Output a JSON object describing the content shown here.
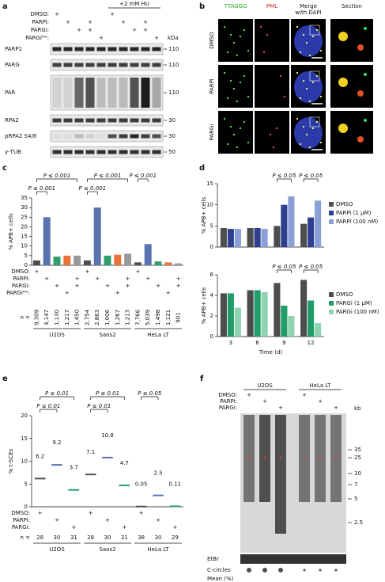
{
  "figure": {
    "a": {
      "label": "a",
      "hu": "+2 mM HU",
      "kda": "kDa",
      "treatments": [
        {
          "name": "DMSO:",
          "marks": [
            "+",
            null,
            null,
            null,
            null,
            "+",
            null,
            null,
            null,
            null
          ]
        },
        {
          "name": "PARPi:",
          "marks": [
            null,
            "+",
            null,
            "+",
            null,
            null,
            "+",
            null,
            "+",
            null
          ]
        },
        {
          "name": "PARGi:",
          "marks": [
            null,
            null,
            "+",
            "+",
            null,
            null,
            null,
            "+",
            "+",
            null
          ]
        },
        {
          "name": "PARGiᴹᵉ:",
          "marks": [
            null,
            null,
            null,
            null,
            "+",
            null,
            null,
            null,
            null,
            "+"
          ]
        }
      ],
      "blots": [
        {
          "name": "PARP1",
          "kda": 110
        },
        {
          "name": "PARG",
          "kda": 110
        },
        {
          "name": "PAR",
          "kda": 110
        },
        {
          "name": "RPA2",
          "kda": 30
        },
        {
          "name": "pRPA2 S4/8",
          "kda": 30
        },
        {
          "name": "γ-TUB",
          "kda": 50
        }
      ]
    },
    "b": {
      "label": "b",
      "columns": [
        [
          "TTAGGG"
        ],
        [
          "PML"
        ],
        [
          "Merge",
          "with DAPI"
        ],
        [
          "Section"
        ]
      ],
      "rows": [
        "DMSO",
        "PARPi",
        "PARGi"
      ]
    },
    "f": {
      "label": "f",
      "lines": [
        "U2OS",
        "HeLa LT"
      ],
      "treatments": [
        {
          "name": "DMSO:",
          "marks": [
            "+",
            null,
            null,
            "+",
            null,
            null
          ]
        },
        {
          "name": "PARPi:",
          "marks": [
            null,
            "+",
            null,
            null,
            "+",
            null
          ]
        },
        {
          "name": "PARGi:",
          "marks": [
            null,
            null,
            "+",
            null,
            null,
            "+"
          ]
        }
      ],
      "kda": "kb",
      "markers": [
        35,
        25,
        10,
        7,
        5,
        2.5
      ],
      "etbr": "EtBr",
      "ccircles": "C-circles",
      "mean": "Mean (%)"
    }
  },
  "chart_data": [
    {
      "type": "bar",
      "panel": "c",
      "y_label": "% APB+ cells",
      "ylim": [
        0,
        35
      ],
      "yticks": [
        0,
        5,
        10,
        15,
        20,
        25,
        30,
        35
      ],
      "categories": [
        null,
        null,
        null,
        null,
        null,
        null,
        null,
        null,
        null,
        null,
        null,
        null,
        null,
        null,
        null
      ],
      "values": [
        2.5,
        25,
        4.5,
        5,
        5,
        2.5,
        30,
        5,
        5.5,
        6,
        1.5,
        11,
        2,
        1.5,
        1
      ],
      "colors": [
        "#4d4d4d",
        "#5873b0",
        "#2e9e6a",
        "#e8743b",
        "#999999",
        "#4d4d4d",
        "#5873b0",
        "#2e9e6a",
        "#e8743b",
        "#999999",
        "#4d4d4d",
        "#5873b0",
        "#2e9e6a",
        "#e8743b",
        "#999999"
      ],
      "annotations": [
        "P ≤ 0.001",
        "P ≤ 0.001",
        "P ≤ 0.001",
        "P ≤ 0.001",
        "P ≤ 0.001"
      ],
      "treatments": [
        {
          "name": "DMSO:",
          "marks": [
            "+",
            null,
            null,
            null,
            null,
            "+",
            null,
            null,
            null,
            null,
            "+",
            null,
            null,
            null,
            null
          ]
        },
        {
          "name": "PARPi:",
          "marks": [
            null,
            "+",
            null,
            null,
            "+",
            null,
            "+",
            null,
            null,
            "+",
            null,
            "+",
            null,
            null,
            "+"
          ]
        },
        {
          "name": "PARGi:",
          "marks": [
            null,
            null,
            "+",
            null,
            "+",
            null,
            null,
            "+",
            null,
            "+",
            null,
            null,
            "+",
            null,
            "+"
          ]
        },
        {
          "name": "PARGiᴹᵉ:",
          "marks": [
            null,
            null,
            null,
            "+",
            null,
            null,
            null,
            null,
            "+",
            null,
            null,
            null,
            null,
            "+",
            null
          ]
        }
      ],
      "n_label": "n =",
      "n": [
        "9,309",
        "4,147",
        "1,130",
        "1,217",
        "1,450",
        "2,754",
        "2,863",
        "1,006",
        "1,267",
        "1,213",
        "7,766",
        "5,039",
        "1,498",
        "1,121",
        "901"
      ],
      "groups": [
        "U2OS",
        "Saos2",
        "HeLa LT"
      ]
    },
    {
      "type": "grouped_bar",
      "panel": "d",
      "y_label": "% APB+ cells",
      "ylim": [
        0,
        15
      ],
      "yticks": [
        0,
        5,
        10,
        15
      ],
      "categories": [
        null,
        null,
        null,
        null
      ],
      "series": [
        {
          "name": "DMSO",
          "color": "#4d4d4d",
          "values": [
            4.5,
            4.5,
            5,
            5.5
          ]
        },
        {
          "name": "PARPi (1 μM)",
          "color": "#2e3f8f",
          "values": [
            4.3,
            4.5,
            10,
            7
          ]
        },
        {
          "name": "PARPi (100 nM)",
          "color": "#8a9fd6",
          "values": [
            4.3,
            4.3,
            12,
            11
          ]
        }
      ],
      "annotations": [
        "P ≤ 0.05",
        "P ≤ 0.05"
      ]
    },
    {
      "type": "grouped_bar",
      "y_label": "% APB+ cells",
      "x_label": "Time (d)",
      "ylim": [
        0,
        6
      ],
      "yticks": [
        0,
        2,
        4,
        6
      ],
      "categories": [
        "3",
        "6",
        "9",
        "12"
      ],
      "series": [
        {
          "name": "DMSO",
          "color": "#4d4d4d",
          "values": [
            4.2,
            4.5,
            5.2,
            5.5
          ]
        },
        {
          "name": "PARGi (1 μM)",
          "color": "#1f9e6a",
          "values": [
            4.2,
            4.5,
            3,
            3.5
          ]
        },
        {
          "name": "PARGi (100 nM)",
          "color": "#8fd3b0",
          "values": [
            2.8,
            4.3,
            2,
            1.3
          ]
        }
      ],
      "annotations": [
        "P ≤ 0.05",
        "P ≤ 0.05"
      ]
    },
    {
      "type": "dot",
      "panel": "e",
      "y_label": "% t-SCEs",
      "ylim": [
        0,
        20
      ],
      "yticks": [
        0,
        5,
        10,
        15,
        20
      ],
      "categories": [
        null,
        null,
        null,
        null,
        null,
        null,
        null,
        null,
        null
      ],
      "values": [
        6.2,
        9.2,
        3.7,
        7.1,
        10.8,
        4.7,
        0.05,
        2.5,
        0.11
      ],
      "colors": [
        "#4d4d4d",
        "#5873b0",
        "#2e9e6a",
        "#4d4d4d",
        "#5873b0",
        "#2e9e6a",
        "#4d4d4d",
        "#5873b0",
        "#2e9e6a"
      ],
      "annotations": [
        "P ≤ 0.01",
        "P ≤ 0.01",
        "P ≤ 0.01",
        "P ≤ 0.01",
        "P ≤ 0.05"
      ],
      "treatments": [
        {
          "name": "DMSO:",
          "marks": [
            "+",
            null,
            null,
            "+",
            null,
            null,
            "+",
            null,
            null
          ]
        },
        {
          "name": "PARPi:",
          "marks": [
            null,
            "+",
            null,
            null,
            "+",
            null,
            null,
            "+",
            null
          ]
        },
        {
          "name": "PARGi:",
          "marks": [
            null,
            null,
            "+",
            null,
            null,
            "+",
            null,
            null,
            "+"
          ]
        }
      ],
      "n_label": "n =",
      "n": [
        28,
        30,
        31,
        28,
        30,
        31,
        38,
        30,
        29
      ],
      "groups": [
        "U2OS",
        "Saos2",
        "HeLa LT"
      ]
    }
  ]
}
